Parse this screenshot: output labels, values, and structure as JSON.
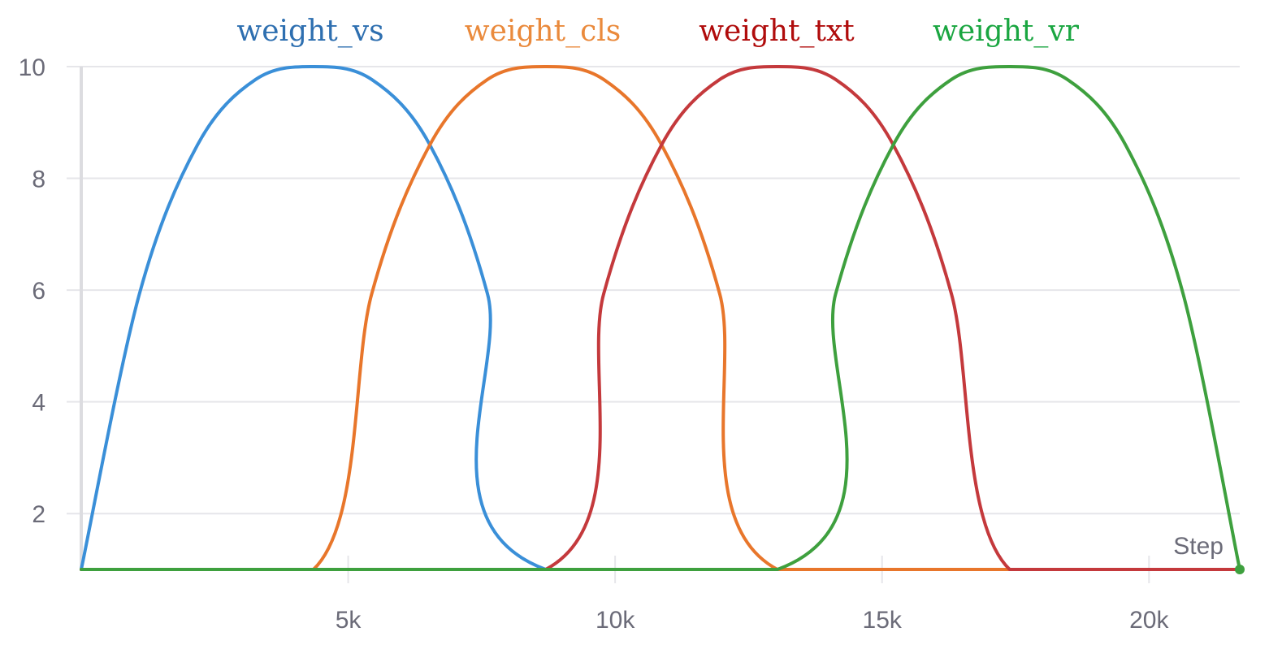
{
  "chart_data": {
    "type": "line",
    "xlabel": "Step",
    "ylabel": "",
    "xlim": [
      0,
      21700
    ],
    "ylim": [
      1,
      10
    ],
    "x_ticks": [
      {
        "value": 5000,
        "label": "5k"
      },
      {
        "value": 10000,
        "label": "10k"
      },
      {
        "value": 15000,
        "label": "15k"
      },
      {
        "value": 20000,
        "label": "20k"
      }
    ],
    "y_ticks": [
      {
        "value": 2,
        "label": "2"
      },
      {
        "value": 4,
        "label": "4"
      },
      {
        "value": 6,
        "label": "6"
      },
      {
        "value": 8,
        "label": "8"
      },
      {
        "value": 10,
        "label": "10"
      }
    ],
    "grid": true,
    "legend_position": "top",
    "series": [
      {
        "name": "weight_vs",
        "color": "#3a8fd8",
        "label_color": "#2e6fb0",
        "points": [
          [
            0,
            1
          ],
          [
            1089,
            5.93
          ],
          [
            2178,
            8.6
          ],
          [
            3267,
            9.77
          ],
          [
            4350,
            10
          ],
          [
            5440,
            9.77
          ],
          [
            6530,
            8.6
          ],
          [
            7610,
            5.93
          ],
          [
            8700,
            1
          ],
          [
            21700,
            1
          ]
        ]
      },
      {
        "name": "weight_cls",
        "color": "#e8762b",
        "label_color": "#ea8a3c",
        "points": [
          [
            0,
            1
          ],
          [
            4350,
            1
          ],
          [
            5440,
            5.93
          ],
          [
            6530,
            8.6
          ],
          [
            7610,
            9.77
          ],
          [
            8700,
            10
          ],
          [
            9785,
            9.77
          ],
          [
            10870,
            8.6
          ],
          [
            11960,
            5.93
          ],
          [
            13040,
            1
          ],
          [
            21700,
            1
          ]
        ]
      },
      {
        "name": "weight_txt",
        "color": "#c4393c",
        "label_color": "#b00c0c",
        "points": [
          [
            0,
            1
          ],
          [
            8700,
            1
          ],
          [
            9785,
            5.93
          ],
          [
            10870,
            8.6
          ],
          [
            11960,
            9.77
          ],
          [
            13040,
            10
          ],
          [
            14130,
            9.77
          ],
          [
            15210,
            8.6
          ],
          [
            16300,
            5.93
          ],
          [
            17390,
            1
          ],
          [
            21700,
            1
          ]
        ]
      },
      {
        "name": "weight_vr",
        "color": "#3ea03e",
        "label_color": "#1aa641",
        "points": [
          [
            0,
            1
          ],
          [
            13040,
            1
          ],
          [
            14130,
            5.93
          ],
          [
            15210,
            8.6
          ],
          [
            16300,
            9.77
          ],
          [
            17390,
            10
          ],
          [
            18470,
            9.77
          ],
          [
            19560,
            8.6
          ],
          [
            20640,
            5.93
          ],
          [
            21700,
            1
          ]
        ]
      }
    ]
  }
}
